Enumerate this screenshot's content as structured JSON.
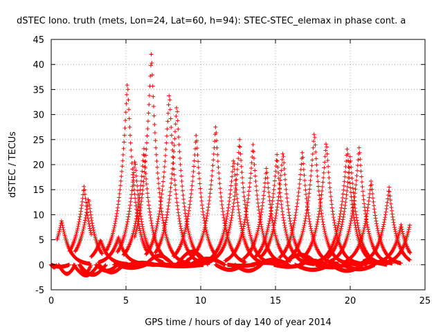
{
  "chart_data": {
    "type": "scatter",
    "title": "dSTEC Iono. truth (mets, Lon=24, Lat=60, h=94): STEC-STEC_elemax in phase cont. a",
    "xlabel": "GPS time / hours of day 140 of year 2014",
    "ylabel": "dSTEC  / TECUs",
    "xlim": [
      0,
      25
    ],
    "ylim": [
      -5,
      45
    ],
    "xticks": [
      0,
      5,
      10,
      15,
      20,
      25
    ],
    "yticks": [
      -5,
      0,
      5,
      10,
      15,
      20,
      25,
      30,
      35,
      40,
      45
    ],
    "grid": true,
    "marker": "plus",
    "color": "#ff0000",
    "arcs": [
      {
        "start": 0.0,
        "peak": 0.7,
        "end": 2.6,
        "peak_value": 8.9,
        "min_value": -0.5
      },
      {
        "start": 0.0,
        "peak": 2.2,
        "end": 2.7,
        "peak_value": 15.9,
        "min_value": -0.4
      },
      {
        "start": 0.5,
        "peak": 2.5,
        "end": 3.4,
        "peak_value": 13.5,
        "min_value": -1.8
      },
      {
        "start": 1.9,
        "peak": 5.1,
        "end": 6.4,
        "peak_value": 37.2,
        "min_value": -2.0
      },
      {
        "start": 1.9,
        "peak": 3.3,
        "end": 5.1,
        "peak_value": 5.0,
        "min_value": -1.6
      },
      {
        "start": 1.5,
        "peak": 4.5,
        "end": 6.8,
        "peak_value": 5.5,
        "min_value": -2.1
      },
      {
        "start": 3.0,
        "peak": 5.6,
        "end": 7.5,
        "peak_value": 21.3,
        "min_value": -1.2
      },
      {
        "start": 3.2,
        "peak": 6.2,
        "end": 7.8,
        "peak_value": 23.2,
        "min_value": -1.5
      },
      {
        "start": 4.2,
        "peak": 6.7,
        "end": 9.3,
        "peak_value": 42.8,
        "min_value": 0.0
      },
      {
        "start": 4.4,
        "peak": 7.9,
        "end": 10.2,
        "peak_value": 35.0,
        "min_value": -0.6
      },
      {
        "start": 5.2,
        "peak": 8.4,
        "end": 10.6,
        "peak_value": 32.5,
        "min_value": 0.4
      },
      {
        "start": 6.3,
        "peak": 9.7,
        "end": 11.0,
        "peak_value": 26.3,
        "min_value": 1.8
      },
      {
        "start": 6.7,
        "peak": 11.0,
        "end": 13.0,
        "peak_value": 28.0,
        "min_value": 0.0
      },
      {
        "start": 7.2,
        "peak": 12.6,
        "end": 14.5,
        "peak_value": 25.0,
        "min_value": -0.3
      },
      {
        "start": 8.4,
        "peak": 12.2,
        "end": 14.0,
        "peak_value": 21.5,
        "min_value": 2.6
      },
      {
        "start": 9.3,
        "peak": 13.5,
        "end": 15.4,
        "peak_value": 24.0,
        "min_value": 1.2
      },
      {
        "start": 11.0,
        "peak": 14.4,
        "end": 16.0,
        "peak_value": 19.6,
        "min_value": -1.0
      },
      {
        "start": 11.8,
        "peak": 15.1,
        "end": 17.6,
        "peak_value": 22.0,
        "min_value": -0.2
      },
      {
        "start": 12.3,
        "peak": 15.5,
        "end": 18.2,
        "peak_value": 23.0,
        "min_value": -1.2
      },
      {
        "start": 13.4,
        "peak": 16.8,
        "end": 19.2,
        "peak_value": 22.8,
        "min_value": 0.4
      },
      {
        "start": 13.8,
        "peak": 17.6,
        "end": 20.7,
        "peak_value": 27.0,
        "min_value": 1.0
      },
      {
        "start": 14.9,
        "peak": 18.4,
        "end": 21.1,
        "peak_value": 25.0,
        "min_value": -0.4
      },
      {
        "start": 15.5,
        "peak": 19.8,
        "end": 22.2,
        "peak_value": 23.5,
        "min_value": 2.0
      },
      {
        "start": 16.3,
        "peak": 20.6,
        "end": 22.8,
        "peak_value": 23.8,
        "min_value": -1.0
      },
      {
        "start": 16.6,
        "peak": 20.0,
        "end": 21.9,
        "peak_value": 22.0,
        "min_value": 0.8
      },
      {
        "start": 17.7,
        "peak": 21.4,
        "end": 23.4,
        "peak_value": 17.0,
        "min_value": -0.5
      },
      {
        "start": 18.7,
        "peak": 22.6,
        "end": 24.0,
        "peak_value": 15.5,
        "min_value": -1.2
      },
      {
        "start": 19.5,
        "peak": 23.4,
        "end": 24.0,
        "peak_value": 8.0,
        "min_value": -0.9
      },
      {
        "start": 20.5,
        "peak": 24.0,
        "end": 24.0,
        "peak_value": 8.2,
        "min_value": 0.5
      }
    ]
  }
}
